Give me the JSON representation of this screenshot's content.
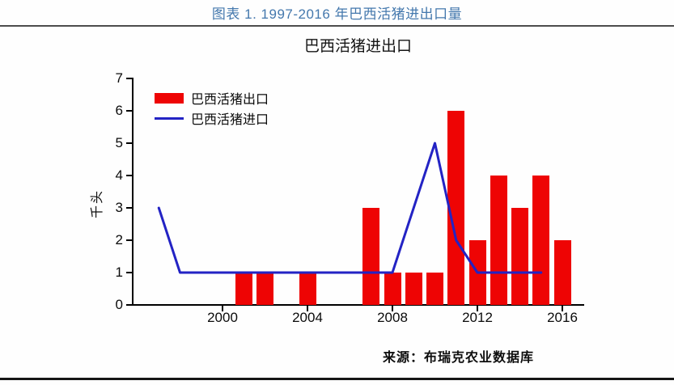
{
  "page": {
    "header_title": "图表 1. 1997-2016 年巴西活猪进出口量",
    "source_note": "来源：布瑞克农业数据库"
  },
  "colors": {
    "header_title": "#4478ad",
    "export_bar": "#ee0404",
    "import_line": "#2323c4",
    "axis": "#000000",
    "top_rule": "#4d4d4d",
    "bottom_rule": "#161616"
  },
  "chart_data": {
    "type": "bar",
    "title": "巴西活猪进出口",
    "xlabel": "",
    "ylabel": "千头",
    "ylim": [
      0,
      7
    ],
    "yticks": [
      0,
      1,
      2,
      3,
      4,
      5,
      6,
      7
    ],
    "xlim": [
      1995.8,
      2017
    ],
    "xticks": [
      2000,
      2004,
      2008,
      2012,
      2016
    ],
    "grid": false,
    "legend_position": "upper left",
    "categories": [
      1997,
      1998,
      1999,
      2000,
      2001,
      2002,
      2003,
      2004,
      2005,
      2006,
      2007,
      2008,
      2009,
      2010,
      2011,
      2012,
      2013,
      2014,
      2015,
      2016
    ],
    "series": [
      {
        "name": "巴西活猪出口",
        "kind": "bar",
        "color": "#ee0404",
        "x": [
          1997,
          1998,
          1999,
          2000,
          2001,
          2002,
          2003,
          2004,
          2005,
          2006,
          2007,
          2008,
          2009,
          2010,
          2011,
          2012,
          2013,
          2014,
          2015,
          2016
        ],
        "values": [
          0,
          0,
          0,
          0,
          1,
          1,
          0,
          1,
          0,
          0,
          3,
          1,
          1,
          1,
          6,
          2,
          4,
          3,
          4,
          2
        ]
      },
      {
        "name": "巴西活猪进口",
        "kind": "line",
        "color": "#2323c4",
        "x": [
          1997,
          1998,
          1999,
          2000,
          2001,
          2002,
          2003,
          2004,
          2005,
          2006,
          2007,
          2008,
          2009,
          2010,
          2011,
          2012,
          2013,
          2014,
          2015
        ],
        "values": [
          3,
          1,
          1,
          1,
          1,
          1,
          1,
          1,
          1,
          1,
          1,
          1,
          3,
          5,
          2,
          1,
          1,
          1,
          1
        ]
      }
    ]
  }
}
